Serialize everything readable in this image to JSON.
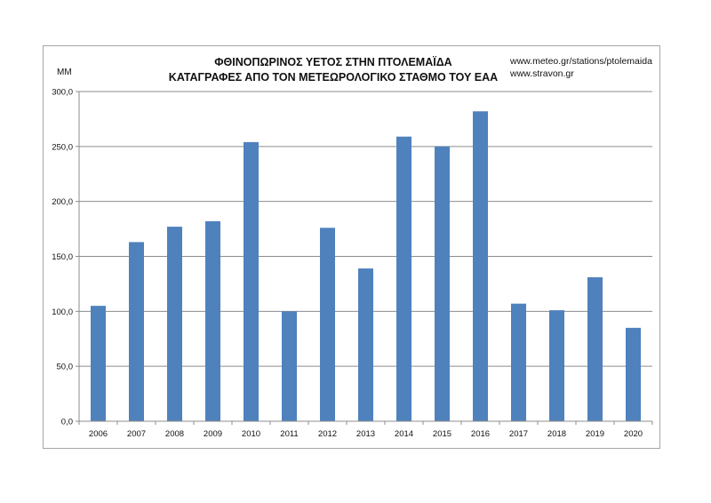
{
  "chart_data": {
    "type": "bar",
    "title_lines": [
      "ΦΘΙΝΟΠΩΡΙΝΟΣ ΥΕΤΟΣ ΣΤΗΝ ΠΤΟΛΕΜΑΪΔΑ",
      "ΚΑΤΑΓΡΑΦΕΣ ΑΠΟ ΤΟΝ ΜΕΤΕΩΡΟΛΟΓΙΚΟ ΣΤΑΘΜΟ ΤΟΥ ΕΑΑ"
    ],
    "sources": [
      "www.meteo.gr/stations/ptolemaida",
      "www.stravon.gr"
    ],
    "ylabel": "MM",
    "xlabel": "",
    "ylim": [
      0,
      300
    ],
    "yticks": [
      "0,0",
      "50,0",
      "100,0",
      "150,0",
      "200,0",
      "250,0",
      "300,0"
    ],
    "ytick_values": [
      0,
      50,
      100,
      150,
      200,
      250,
      300
    ],
    "grid": true,
    "bar_color": "#4f81bd",
    "categories": [
      "2006",
      "2007",
      "2008",
      "2009",
      "2010",
      "2011",
      "2012",
      "2013",
      "2014",
      "2015",
      "2016",
      "2017",
      "2018",
      "2019",
      "2020"
    ],
    "values": [
      105,
      163,
      177,
      182,
      254,
      100,
      176,
      139,
      259,
      250,
      282,
      107,
      101,
      131,
      85
    ]
  }
}
